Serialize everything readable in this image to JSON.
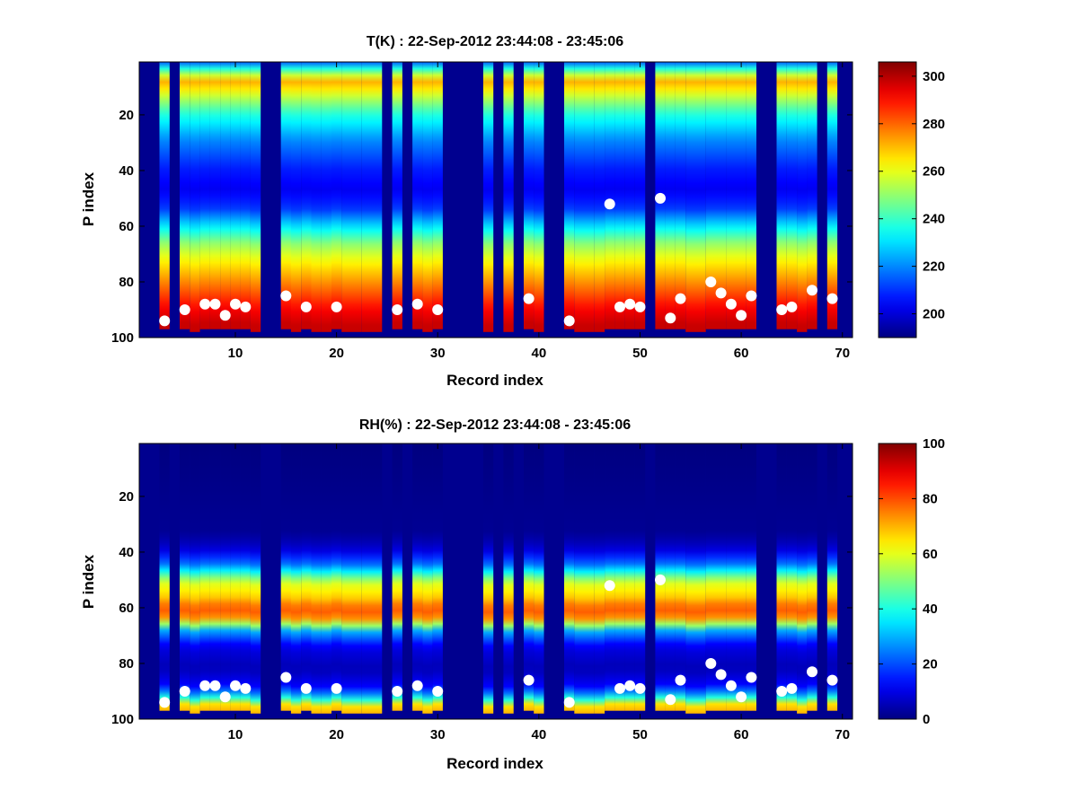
{
  "chart_data": [
    {
      "type": "heatmap",
      "title": "T(K) : 22-Sep-2012 23:44:08 - 23:45:06",
      "xlabel": "Record index",
      "ylabel": "P index",
      "xlim": [
        0.5,
        71
      ],
      "ylim": [
        1,
        100
      ],
      "y_reversed": true,
      "xticks": [
        10,
        20,
        30,
        40,
        50,
        60,
        70
      ],
      "yticks": [
        20,
        40,
        60,
        80,
        100
      ],
      "colorbar": {
        "ticks": [
          200,
          220,
          240,
          260,
          280,
          300
        ],
        "clim": [
          190,
          306
        ],
        "colormap": "jet"
      },
      "profile": {
        "p": [
          1,
          5,
          8,
          10,
          14,
          20,
          30,
          40,
          48,
          55,
          62,
          68,
          74,
          80,
          86,
          92,
          98
        ],
        "value": [
          215,
          250,
          272,
          268,
          255,
          238,
          220,
          208,
          203,
          210,
          232,
          250,
          262,
          272,
          282,
          292,
          298
        ]
      },
      "records": [
        3,
        5,
        6,
        7,
        8,
        9,
        10,
        11,
        12,
        15,
        16,
        17,
        18,
        19,
        20,
        21,
        22,
        23,
        24,
        26,
        28,
        29,
        30,
        35,
        37,
        39,
        40,
        43,
        44,
        45,
        46,
        47,
        48,
        49,
        50,
        52,
        53,
        54,
        55,
        56,
        57,
        58,
        59,
        60,
        61,
        64,
        65,
        66,
        67,
        69
      ],
      "surface_markers": [
        {
          "x": 3,
          "p": 94
        },
        {
          "x": 5,
          "p": 90
        },
        {
          "x": 7,
          "p": 88
        },
        {
          "x": 8,
          "p": 88
        },
        {
          "x": 9,
          "p": 92
        },
        {
          "x": 10,
          "p": 88
        },
        {
          "x": 11,
          "p": 89
        },
        {
          "x": 15,
          "p": 85
        },
        {
          "x": 17,
          "p": 89
        },
        {
          "x": 20,
          "p": 89
        },
        {
          "x": 26,
          "p": 90
        },
        {
          "x": 28,
          "p": 88
        },
        {
          "x": 30,
          "p": 90
        },
        {
          "x": 39,
          "p": 86
        },
        {
          "x": 43,
          "p": 94
        },
        {
          "x": 47,
          "p": 52
        },
        {
          "x": 48,
          "p": 89
        },
        {
          "x": 49,
          "p": 88
        },
        {
          "x": 50,
          "p": 89
        },
        {
          "x": 52,
          "p": 50
        },
        {
          "x": 53,
          "p": 93
        },
        {
          "x": 54,
          "p": 86
        },
        {
          "x": 57,
          "p": 80
        },
        {
          "x": 58,
          "p": 84
        },
        {
          "x": 59,
          "p": 88
        },
        {
          "x": 60,
          "p": 92
        },
        {
          "x": 61,
          "p": 85
        },
        {
          "x": 64,
          "p": 90
        },
        {
          "x": 65,
          "p": 89
        },
        {
          "x": 67,
          "p": 83
        },
        {
          "x": 69,
          "p": 86
        }
      ]
    },
    {
      "type": "heatmap",
      "title": "RH(%) : 22-Sep-2012 23:44:08 - 23:45:06",
      "xlabel": "Record index",
      "ylabel": "P index",
      "xlim": [
        0.5,
        71
      ],
      "ylim": [
        1,
        100
      ],
      "y_reversed": true,
      "xticks": [
        10,
        20,
        30,
        40,
        50,
        60,
        70
      ],
      "yticks": [
        20,
        40,
        60,
        80,
        100
      ],
      "colorbar": {
        "ticks": [
          0,
          20,
          40,
          60,
          80,
          100
        ],
        "clim": [
          0,
          100
        ],
        "colormap": "jet"
      },
      "profile": {
        "p": [
          1,
          34,
          40,
          46,
          52,
          58,
          62,
          66,
          70,
          76,
          84,
          90,
          94,
          98
        ],
        "value": [
          0,
          2,
          8,
          25,
          58,
          68,
          80,
          72,
          30,
          10,
          5,
          12,
          30,
          70
        ]
      },
      "records": [
        3,
        5,
        6,
        7,
        8,
        9,
        10,
        11,
        12,
        15,
        16,
        17,
        18,
        19,
        20,
        21,
        22,
        23,
        24,
        26,
        28,
        29,
        30,
        35,
        37,
        39,
        40,
        43,
        44,
        45,
        46,
        47,
        48,
        49,
        50,
        52,
        53,
        54,
        55,
        56,
        57,
        58,
        59,
        60,
        61,
        64,
        65,
        66,
        67,
        69
      ],
      "surface_markers": [
        {
          "x": 3,
          "p": 94
        },
        {
          "x": 5,
          "p": 90
        },
        {
          "x": 7,
          "p": 88
        },
        {
          "x": 8,
          "p": 88
        },
        {
          "x": 9,
          "p": 92
        },
        {
          "x": 10,
          "p": 88
        },
        {
          "x": 11,
          "p": 89
        },
        {
          "x": 15,
          "p": 85
        },
        {
          "x": 17,
          "p": 89
        },
        {
          "x": 20,
          "p": 89
        },
        {
          "x": 26,
          "p": 90
        },
        {
          "x": 28,
          "p": 88
        },
        {
          "x": 30,
          "p": 90
        },
        {
          "x": 39,
          "p": 86
        },
        {
          "x": 43,
          "p": 94
        },
        {
          "x": 47,
          "p": 52
        },
        {
          "x": 48,
          "p": 89
        },
        {
          "x": 49,
          "p": 88
        },
        {
          "x": 50,
          "p": 89
        },
        {
          "x": 52,
          "p": 50
        },
        {
          "x": 53,
          "p": 93
        },
        {
          "x": 54,
          "p": 86
        },
        {
          "x": 57,
          "p": 80
        },
        {
          "x": 58,
          "p": 84
        },
        {
          "x": 59,
          "p": 88
        },
        {
          "x": 60,
          "p": 92
        },
        {
          "x": 61,
          "p": 85
        },
        {
          "x": 64,
          "p": 90
        },
        {
          "x": 65,
          "p": 89
        },
        {
          "x": 67,
          "p": 83
        },
        {
          "x": 69,
          "p": 86
        }
      ]
    }
  ]
}
